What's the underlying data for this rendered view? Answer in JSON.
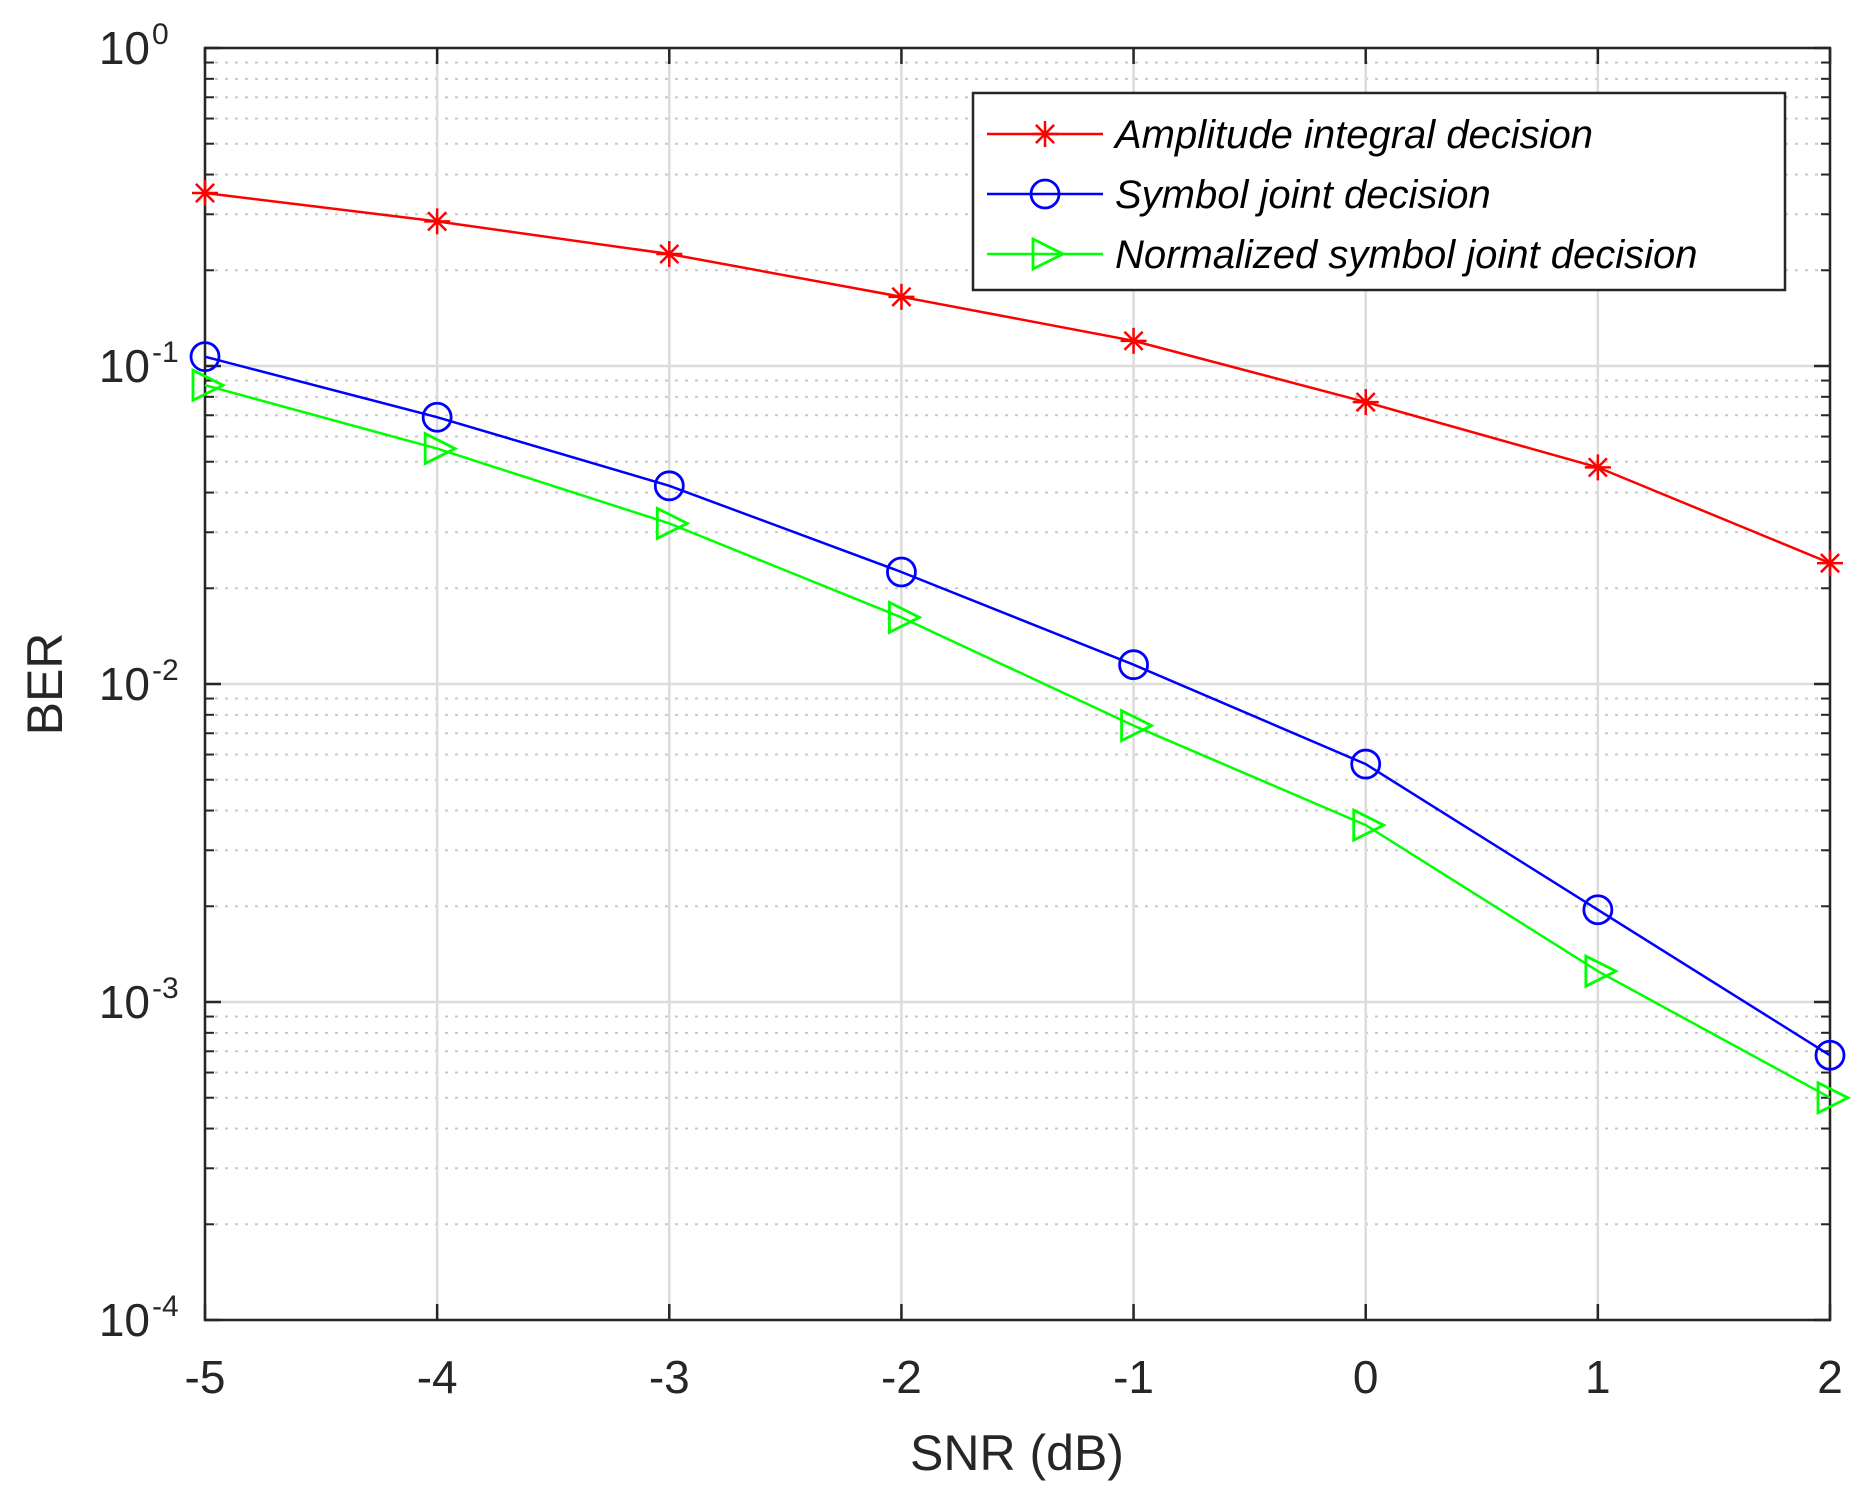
{
  "chart_data": {
    "type": "line",
    "title": "",
    "xlabel": "SNR (dB)",
    "ylabel": "BER",
    "xlim": [
      -5,
      2
    ],
    "ylim": [
      0.0001,
      1
    ],
    "yscale": "log",
    "grid": true,
    "legend_position": "top-right",
    "x": [
      -5,
      -4,
      -3,
      -2,
      -1,
      0,
      1,
      2
    ],
    "x_tick_labels": [
      "-5",
      "-4",
      "-3",
      "-2",
      "-1",
      "0",
      "1",
      "2"
    ],
    "y_ticks": [
      {
        "value": 1,
        "base": "10",
        "exp": "0"
      },
      {
        "value": 0.1,
        "base": "10",
        "exp": "-1"
      },
      {
        "value": 0.01,
        "base": "10",
        "exp": "-2"
      },
      {
        "value": 0.001,
        "base": "10",
        "exp": "-3"
      },
      {
        "value": 0.0001,
        "base": "10",
        "exp": "-4"
      }
    ],
    "series": [
      {
        "name": "Amplitude integral decision",
        "color": "#ff0000",
        "marker": "asterisk",
        "values": [
          0.35,
          0.285,
          0.225,
          0.165,
          0.12,
          0.077,
          0.048,
          0.024
        ]
      },
      {
        "name": "Symbol joint decision",
        "color": "#0000ff",
        "marker": "circle",
        "values": [
          0.107,
          0.069,
          0.042,
          0.0225,
          0.0115,
          0.0056,
          0.00195,
          0.00068
        ]
      },
      {
        "name": "Normalized symbol joint decision",
        "color": "#00ff00",
        "marker": "triangle-right",
        "values": [
          0.087,
          0.055,
          0.032,
          0.0162,
          0.0074,
          0.0036,
          0.00125,
          0.0005
        ]
      }
    ]
  }
}
